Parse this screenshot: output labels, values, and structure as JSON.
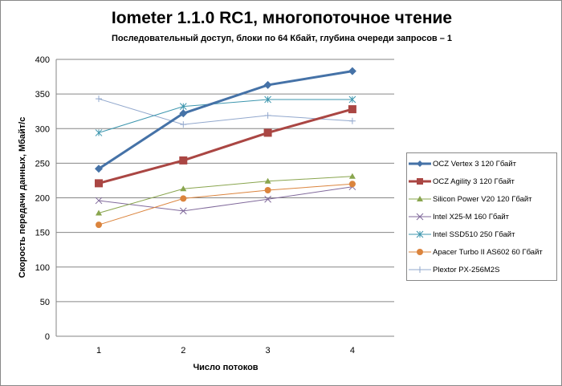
{
  "chart_data": {
    "type": "line",
    "title": "Iometer 1.1.0 RC1, многопоточное чтение",
    "subtitle": "Последовательный  доступ, блоки  по 64 Кбайт,  глубина очереди запросов – 1",
    "xlabel": "Число  потоков",
    "ylabel": "Скорость  передачи данных, Мбайт/с",
    "x": [
      1,
      2,
      3,
      4
    ],
    "x_tick_labels": [
      "1",
      "2",
      "3",
      "4"
    ],
    "ylim": [
      0,
      400
    ],
    "y_ticks": [
      0,
      50,
      100,
      150,
      200,
      250,
      300,
      350,
      400
    ],
    "grid": true,
    "legend_position": "right",
    "series": [
      {
        "name": "OCZ Vertex 3 120 Гбайт",
        "values": [
          242,
          322,
          363,
          383
        ],
        "color": "#4572a7",
        "marker": "diamond",
        "width": 3
      },
      {
        "name": "OCZ Agility 3 120 Гбайт",
        "values": [
          221,
          254,
          294,
          328
        ],
        "color": "#aa4643",
        "marker": "square",
        "width": 3
      },
      {
        "name": "Silicon Power V20 120 Гбайт",
        "values": [
          178,
          213,
          224,
          231
        ],
        "color": "#89a54e",
        "marker": "triangle",
        "width": 1
      },
      {
        "name": "Intel X25-M 160 Гбайт",
        "values": [
          196,
          181,
          198,
          216
        ],
        "color": "#80699b",
        "marker": "x",
        "width": 1
      },
      {
        "name": "Intel SSD510 250 Гбайт",
        "values": [
          294,
          332,
          342,
          342
        ],
        "color": "#3d96ae",
        "marker": "star",
        "width": 1
      },
      {
        "name": "Apacer Turbo II AS602 60 Гбайт",
        "values": [
          161,
          199,
          211,
          220
        ],
        "color": "#db843d",
        "marker": "circle",
        "width": 1
      },
      {
        "name": "Plextor PX-256M2S",
        "values": [
          343,
          306,
          319,
          311
        ],
        "color": "#92a8cd",
        "marker": "plus",
        "width": 1
      }
    ]
  }
}
